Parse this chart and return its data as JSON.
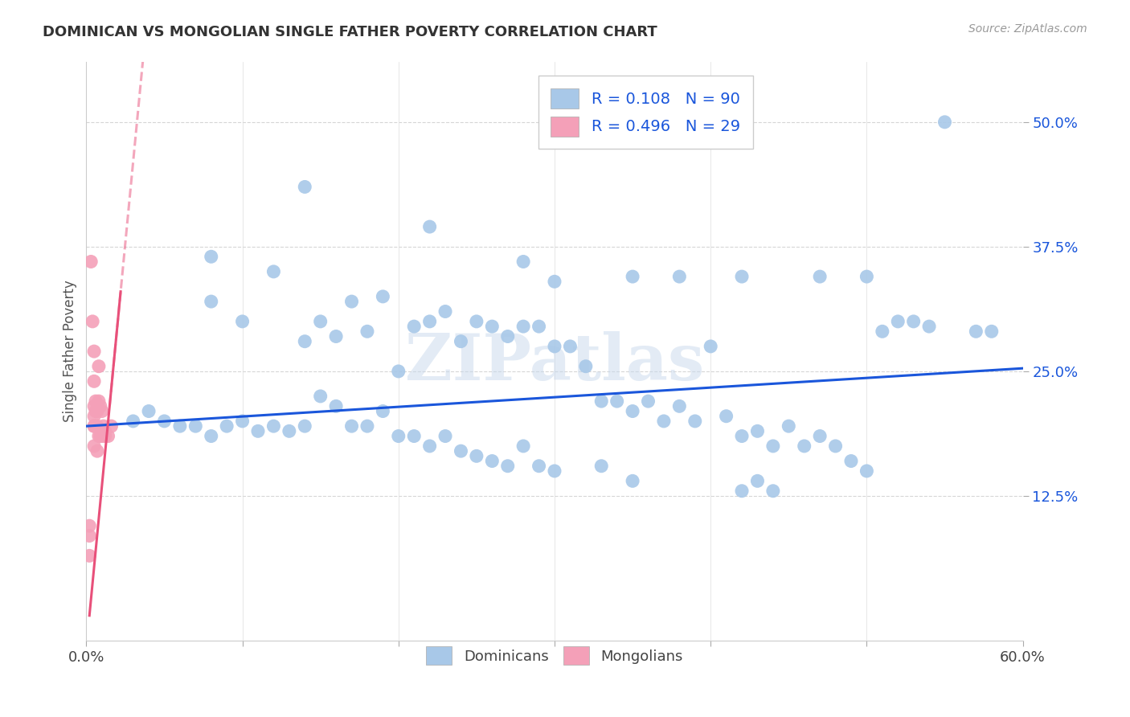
{
  "title": "DOMINICAN VS MONGOLIAN SINGLE FATHER POVERTY CORRELATION CHART",
  "source": "Source: ZipAtlas.com",
  "ylabel": "Single Father Poverty",
  "xlim": [
    0.0,
    0.6
  ],
  "ylim": [
    -0.02,
    0.56
  ],
  "ytick_positions": [
    0.125,
    0.25,
    0.375,
    0.5
  ],
  "ytick_labels": [
    "12.5%",
    "25.0%",
    "37.5%",
    "50.0%"
  ],
  "blue_color": "#a8c8e8",
  "pink_color": "#f4a0b8",
  "blue_line_color": "#1a56db",
  "pink_line_color": "#e8507a",
  "legend_R1": "0.108",
  "legend_N1": "90",
  "legend_R2": "0.496",
  "legend_N2": "29",
  "watermark": "ZIPatlas",
  "blue_regression_x0": 0.0,
  "blue_regression_y0": 0.195,
  "blue_regression_x1": 0.6,
  "blue_regression_y1": 0.253,
  "pink_regression_x0": 0.002,
  "pink_regression_y0": 0.005,
  "pink_regression_x1": 0.022,
  "pink_regression_y1": 0.33,
  "dominicans_x": [
    0.08,
    0.14,
    0.22,
    0.28,
    0.3,
    0.35,
    0.38,
    0.42,
    0.47,
    0.5,
    0.53,
    0.55,
    0.08,
    0.1,
    0.12,
    0.14,
    0.15,
    0.16,
    0.17,
    0.18,
    0.19,
    0.2,
    0.21,
    0.22,
    0.23,
    0.24,
    0.25,
    0.26,
    0.27,
    0.28,
    0.29,
    0.3,
    0.31,
    0.32,
    0.33,
    0.34,
    0.35,
    0.36,
    0.37,
    0.38,
    0.39,
    0.4,
    0.41,
    0.42,
    0.43,
    0.44,
    0.45,
    0.46,
    0.47,
    0.48,
    0.49,
    0.5,
    0.51,
    0.52,
    0.54,
    0.57,
    0.58,
    0.03,
    0.04,
    0.05,
    0.06,
    0.07,
    0.08,
    0.09,
    0.1,
    0.11,
    0.12,
    0.13,
    0.14,
    0.15,
    0.16,
    0.17,
    0.18,
    0.19,
    0.2,
    0.21,
    0.22,
    0.23,
    0.24,
    0.25,
    0.26,
    0.27,
    0.28,
    0.29,
    0.3,
    0.33,
    0.35,
    0.42,
    0.43,
    0.44
  ],
  "dominicans_y": [
    0.365,
    0.435,
    0.395,
    0.36,
    0.34,
    0.345,
    0.345,
    0.345,
    0.345,
    0.345,
    0.3,
    0.5,
    0.32,
    0.3,
    0.35,
    0.28,
    0.3,
    0.285,
    0.32,
    0.29,
    0.325,
    0.25,
    0.295,
    0.3,
    0.31,
    0.28,
    0.3,
    0.295,
    0.285,
    0.295,
    0.295,
    0.275,
    0.275,
    0.255,
    0.22,
    0.22,
    0.21,
    0.22,
    0.2,
    0.215,
    0.2,
    0.275,
    0.205,
    0.185,
    0.19,
    0.175,
    0.195,
    0.175,
    0.185,
    0.175,
    0.16,
    0.15,
    0.29,
    0.3,
    0.295,
    0.29,
    0.29,
    0.2,
    0.21,
    0.2,
    0.195,
    0.195,
    0.185,
    0.195,
    0.2,
    0.19,
    0.195,
    0.19,
    0.195,
    0.225,
    0.215,
    0.195,
    0.195,
    0.21,
    0.185,
    0.185,
    0.175,
    0.185,
    0.17,
    0.165,
    0.16,
    0.155,
    0.175,
    0.155,
    0.15,
    0.155,
    0.14,
    0.13,
    0.14,
    0.13
  ],
  "mongolians_x": [
    0.002,
    0.002,
    0.002,
    0.003,
    0.004,
    0.005,
    0.005,
    0.005,
    0.005,
    0.005,
    0.005,
    0.005,
    0.006,
    0.006,
    0.007,
    0.007,
    0.007,
    0.008,
    0.008,
    0.008,
    0.009,
    0.009,
    0.01,
    0.01,
    0.011,
    0.012,
    0.012,
    0.014,
    0.016
  ],
  "mongolians_y": [
    0.065,
    0.085,
    0.095,
    0.36,
    0.3,
    0.27,
    0.24,
    0.215,
    0.205,
    0.195,
    0.195,
    0.175,
    0.22,
    0.21,
    0.21,
    0.195,
    0.17,
    0.255,
    0.22,
    0.185,
    0.215,
    0.185,
    0.21,
    0.185,
    0.195,
    0.19,
    0.185,
    0.185,
    0.195
  ]
}
